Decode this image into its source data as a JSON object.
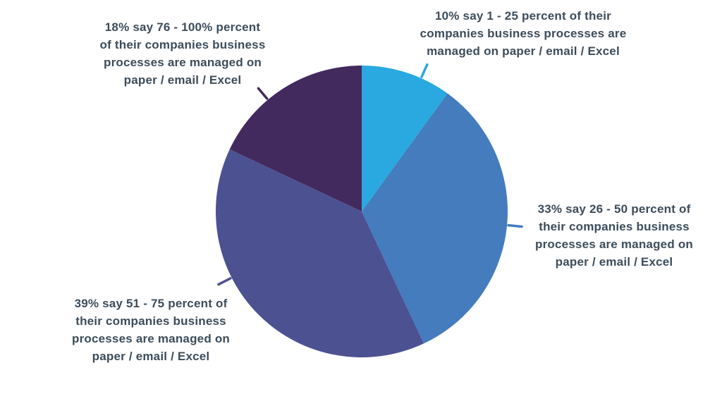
{
  "chart_data": {
    "type": "pie",
    "direction": "clockwise",
    "start_angle_deg": 0,
    "total": 100,
    "legend": "none",
    "background_color": "#FFFFFF",
    "label_text_color": "#3C4C5A",
    "slices": [
      {
        "name": "1-25",
        "value": 10,
        "color": "#29A9E0",
        "callout_angle_deg": 24,
        "label_text": "10% say 1 - 25 percent of their companies business processes are managed on paper / email / Excel",
        "label_lines": [
          "10% say 1 - 25 percent of their",
          "companies business processes are",
          "managed on paper / email / Excel"
        ]
      },
      {
        "name": "26-50",
        "value": 33,
        "color": "#447CBE",
        "callout_angle_deg": 95.4,
        "label_text": "33% say 26 - 50 percent of their companies business processes are managed on paper / email / Excel",
        "label_lines": [
          "33% say 26 - 50 percent of",
          "their companies business",
          "processes are managed on",
          "paper / email / Excel"
        ]
      },
      {
        "name": "51-75",
        "value": 39,
        "color": "#4C5192",
        "callout_angle_deg": 243,
        "label_text": "39% say 51 - 75 percent of their companies business processes are managed on paper / email / Excel",
        "label_lines": [
          "39% say 51 - 75 percent of",
          "their companies business",
          "processes are managed on",
          "paper / email / Excel"
        ]
      },
      {
        "name": "76-100",
        "value": 18,
        "color": "#422A5E",
        "callout_angle_deg": 320,
        "label_text": "18% say 76 - 100% percent of their companies business processes are managed on paper / email / Excel",
        "label_lines": [
          "18% say 76 - 100% percent",
          "of their companies business",
          "processes are managed on",
          "paper / email / Excel"
        ]
      }
    ]
  }
}
